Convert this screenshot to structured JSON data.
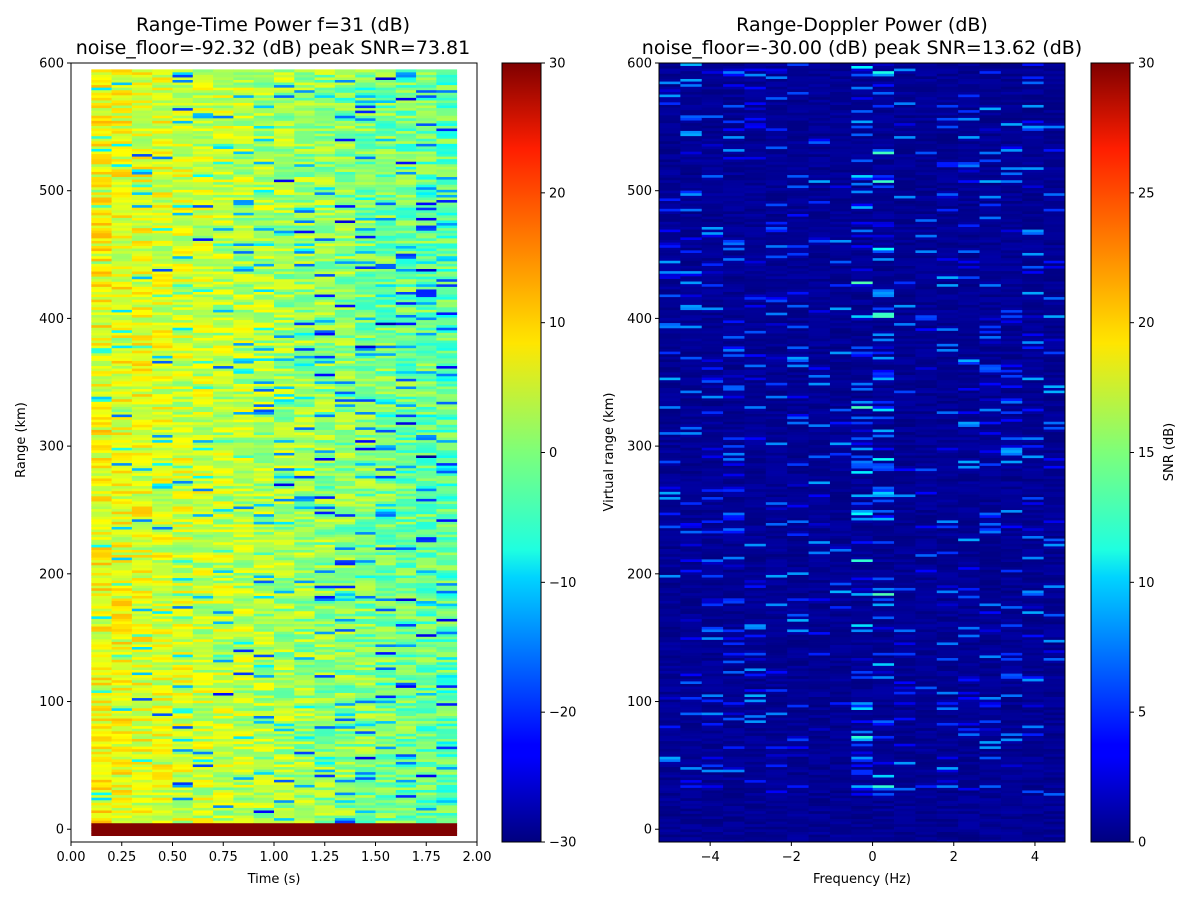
{
  "chart_data": [
    {
      "type": "heatmap",
      "title_line1": "Range-Time Power f=31 (dB)",
      "title_line2": "noise_floor=-92.32 (dB) peak SNR=73.81",
      "xlabel": "Time (s)",
      "ylabel": "Range (km)",
      "xlim": [
        0.0,
        2.0
      ],
      "ylim": [
        -10,
        600
      ],
      "x_ticks": [
        "0.00",
        "0.25",
        "0.50",
        "0.75",
        "1.00",
        "1.25",
        "1.50",
        "1.75",
        "2.00"
      ],
      "x_tick_values": [
        0.0,
        0.25,
        0.5,
        0.75,
        1.0,
        1.25,
        1.5,
        1.75,
        2.0
      ],
      "y_ticks": [
        "0",
        "100",
        "200",
        "300",
        "400",
        "500",
        "600"
      ],
      "y_tick_values": [
        0,
        100,
        200,
        300,
        400,
        500,
        600
      ],
      "data_extent": {
        "x": [
          0.1,
          1.9
        ],
        "y": [
          -5,
          595
        ]
      },
      "time_bins": 18,
      "range_bins": 300,
      "colormap": "jet",
      "colorbar": {
        "label": "",
        "range": [
          -30,
          30
        ],
        "ticks": [
          "30",
          "20",
          "10",
          "0",
          "−10",
          "−20",
          "−30"
        ],
        "tick_values": [
          30,
          20,
          10,
          0,
          -10,
          -20,
          -30
        ]
      },
      "strong_band": {
        "y": [
          -5,
          5
        ],
        "value": 30
      },
      "typical_level_start": 7,
      "typical_level_end": -2
    },
    {
      "type": "heatmap",
      "title_line1": "Range-Doppler Power (dB)",
      "title_line2": "noise_floor=-30.00 (dB) peak SNR=13.62 (dB)",
      "xlabel": "Frequency (Hz)",
      "ylabel": "Virtual range (km)",
      "xlim": [
        -5.26,
        4.74
      ],
      "ylim": [
        -10,
        600
      ],
      "x_ticks": [
        "−4",
        "−2",
        "0",
        "2",
        "4"
      ],
      "x_tick_values": [
        -4,
        -2,
        0,
        2,
        4
      ],
      "y_ticks": [
        "0",
        "100",
        "200",
        "300",
        "400",
        "500",
        "600"
      ],
      "y_tick_values": [
        0,
        100,
        200,
        300,
        400,
        500,
        600
      ],
      "data_extent": {
        "x": [
          -5.26,
          4.74
        ],
        "y": [
          -10,
          600
        ]
      },
      "doppler_bins": 19,
      "range_bins": 300,
      "colormap": "jet",
      "colorbar": {
        "label": "SNR (dB)",
        "range": [
          0,
          30
        ],
        "ticks": [
          "30",
          "25",
          "20",
          "15",
          "10",
          "5",
          "0"
        ],
        "tick_values": [
          30,
          25,
          20,
          15,
          10,
          5,
          0
        ]
      },
      "peak_snr": 13.62
    }
  ]
}
